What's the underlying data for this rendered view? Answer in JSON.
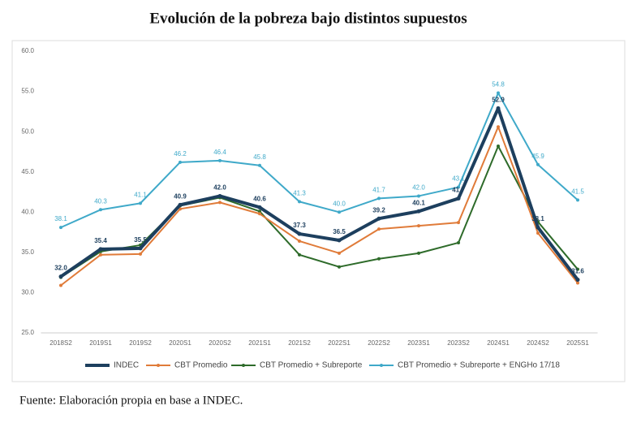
{
  "chart_data": {
    "type": "line",
    "title": "Evolución de la pobreza bajo distintos supuestos",
    "source": "Fuente: Elaboración propia en base a INDEC.",
    "categories": [
      "2018S2",
      "2019S1",
      "2019S2",
      "2020S1",
      "2020S2",
      "2021S1",
      "2021S2",
      "2022S1",
      "2022S2",
      "2023S1",
      "2023S2",
      "2024S1",
      "2024S2",
      "2025S1"
    ],
    "ylim": [
      25,
      60
    ],
    "yticks": [
      {
        "value": 25,
        "label": "25.0"
      },
      {
        "value": 30,
        "label": "30.0"
      },
      {
        "value": 35,
        "label": "35.0"
      },
      {
        "value": 40,
        "label": "40.0"
      },
      {
        "value": 45,
        "label": "45.0"
      },
      {
        "value": 50,
        "label": "50.0"
      },
      {
        "value": 55,
        "label": "55.0"
      },
      {
        "value": 60,
        "label": "60.0"
      }
    ],
    "grid": false,
    "legend": "bottom",
    "series": [
      {
        "name": "INDEC",
        "color": "#1d3f5e",
        "width": 4,
        "values": [
          32.0,
          35.4,
          35.5,
          40.9,
          42.0,
          40.6,
          37.3,
          36.5,
          39.2,
          40.1,
          41.7,
          52.9,
          38.1,
          31.6
        ],
        "value_labels": [
          "32.0",
          "35.4",
          "35.5",
          "40.9",
          "42.0",
          "40.6",
          "37.3",
          "36.5",
          "39.2",
          "40.1",
          "41.7",
          "52.9",
          "38.1",
          "31.6"
        ]
      },
      {
        "name": "CBT Promedio",
        "color": "#e07b39",
        "width": 2,
        "values": [
          30.9,
          34.7,
          34.8,
          40.4,
          41.2,
          39.8,
          36.4,
          34.9,
          37.9,
          38.3,
          38.7,
          50.6,
          37.4,
          31.2
        ]
      },
      {
        "name": "CBT Promedio + Subreporte",
        "color": "#2e6b2a",
        "width": 2,
        "values": [
          31.9,
          35.1,
          35.9,
          40.8,
          41.8,
          40.1,
          34.7,
          33.2,
          34.2,
          34.9,
          36.2,
          48.2,
          38.8,
          32.9
        ]
      },
      {
        "name": "CBT Promedio + Subreporte + ENGHo 17/18",
        "color": "#3fa9c9",
        "width": 2,
        "values": [
          38.1,
          40.3,
          41.1,
          46.2,
          46.4,
          45.8,
          41.3,
          40.0,
          41.7,
          42.0,
          43.1,
          54.8,
          45.9,
          41.5
        ],
        "value_labels": [
          "38.1",
          "40.3",
          "41.1",
          "46.2",
          "46.4",
          "45.8",
          "41.3",
          "40.0",
          "41.7",
          "42.0",
          "43.1",
          "54.8",
          "45.9",
          "41.5"
        ]
      }
    ]
  }
}
